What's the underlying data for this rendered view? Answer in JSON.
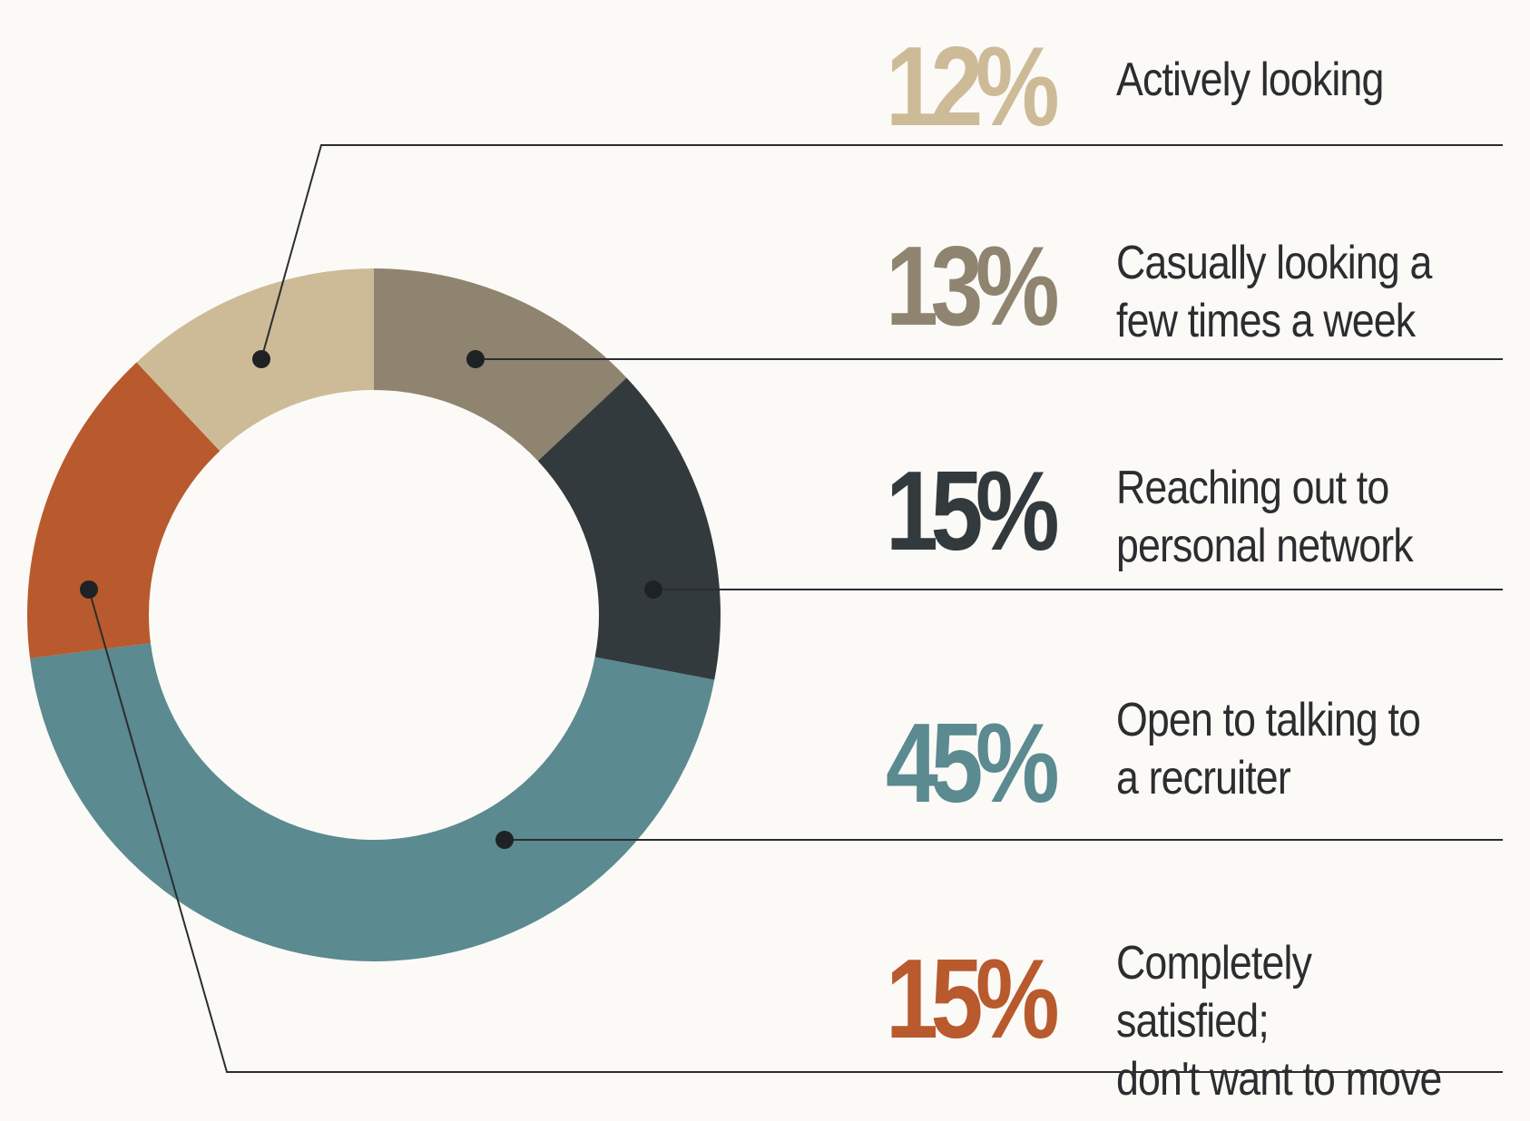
{
  "chart_data": {
    "type": "donut",
    "title": "",
    "unit": "%",
    "categories": [
      "Actively looking",
      "Casually looking a few times a week",
      "Reaching out to personal network",
      "Open to talking to a recruiter",
      "Completely satisfied; don't want to move"
    ],
    "values": [
      12,
      13,
      15,
      45,
      15
    ],
    "slice_order_clockwise_from_top": [
      "Casually looking a few times a week",
      "Reaching out to personal network",
      "Open to talking to a recruiter",
      "Completely satisfied; don't want to move",
      "Actively looking"
    ],
    "legend_placement": "right",
    "grid": false
  },
  "legend": [
    {
      "pct": "12%",
      "label": "Actively looking",
      "label_lines": [
        "Actively looking"
      ],
      "color": "#cdbb98"
    },
    {
      "pct": "13%",
      "label": "Casually looking a few times a week",
      "label_lines": [
        "Casually looking a",
        "few times a week"
      ],
      "color": "#8f8470"
    },
    {
      "pct": "15%",
      "label": "Reaching out to personal network",
      "label_lines": [
        "Reaching out to",
        "personal network"
      ],
      "color": "#333a3d"
    },
    {
      "pct": "45%",
      "label": "Open to talking to a recruiter",
      "label_lines": [
        "Open to talking to",
        "a recruiter"
      ],
      "color": "#5b8a90"
    },
    {
      "pct": "15%",
      "label": "Completely satisfied; don't want to move",
      "label_lines": [
        "Completely satisfied;",
        "don't want to move"
      ],
      "color": "#b85a2d"
    }
  ]
}
